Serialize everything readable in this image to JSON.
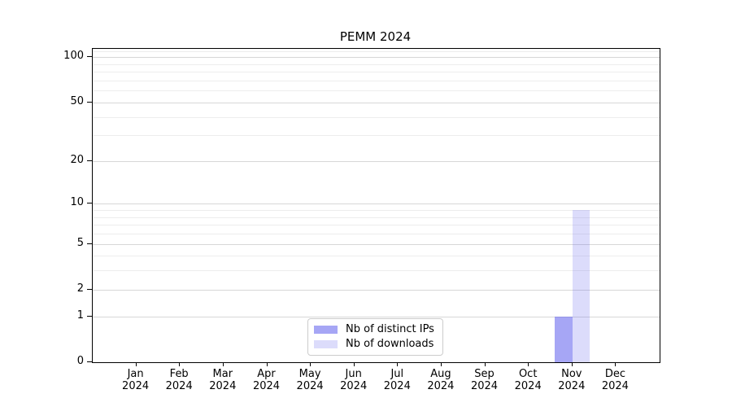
{
  "chart_data": {
    "type": "bar",
    "title": "PEMM 2024",
    "categories": [
      "Jan 2024",
      "Feb 2024",
      "Mar 2024",
      "Apr 2024",
      "May 2024",
      "Jun 2024",
      "Jul 2024",
      "Aug 2024",
      "Sep 2024",
      "Oct 2024",
      "Nov 2024",
      "Dec 2024"
    ],
    "series": [
      {
        "name": "Nb of distinct IPs",
        "color": "rgba(102,102,238,0.58)",
        "values": [
          0,
          0,
          0,
          0,
          0,
          0,
          0,
          0,
          0,
          0,
          1,
          0
        ]
      },
      {
        "name": "Nb of downloads",
        "color": "rgba(102,102,238,0.23)",
        "values": [
          0,
          0,
          0,
          0,
          0,
          0,
          0,
          0,
          0,
          0,
          9,
          0
        ]
      }
    ],
    "xlabel": "",
    "ylabel": "",
    "yaxis": {
      "scale": "symlog",
      "major_ticks": [
        0,
        1,
        2,
        5,
        10,
        20,
        50,
        100
      ],
      "minor_ticks": [
        3,
        4,
        6,
        7,
        8,
        9,
        30,
        40,
        60,
        70,
        80,
        90,
        110
      ],
      "ylim": [
        0,
        113.6
      ]
    },
    "grid": true,
    "legend_position": "lower center"
  },
  "colors": {
    "major_grid": "#d7d7d7",
    "minor_grid": "#ededed",
    "axis": "#000000",
    "legend_border": "#cccccc"
  }
}
